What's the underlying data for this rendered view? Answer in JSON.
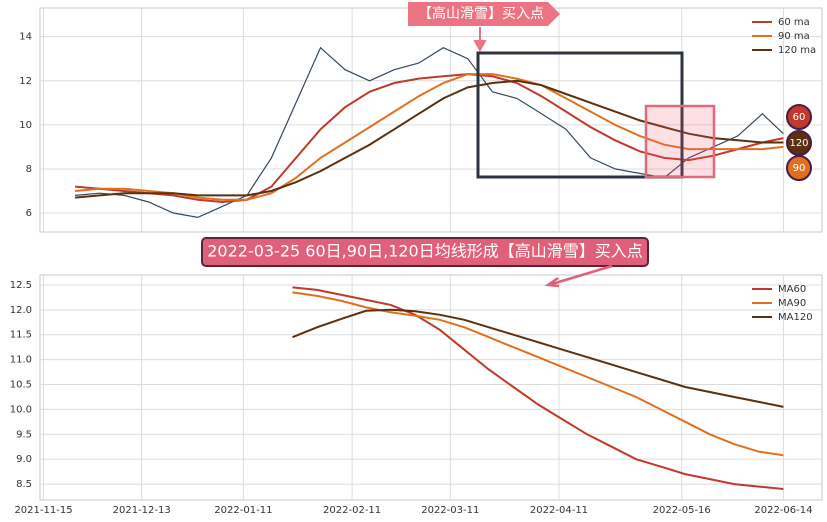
{
  "chart_data": [
    {
      "type": "line",
      "annotation": "【高山滑雪】买入点",
      "end_badges": [
        "60",
        "120",
        "90"
      ],
      "x": [
        "2021-11-24",
        "2021-12-01",
        "2021-12-08",
        "2021-12-15",
        "2021-12-22",
        "2021-12-29",
        "2022-01-05",
        "2022-01-12",
        "2022-01-19",
        "2022-01-26",
        "2022-02-02",
        "2022-02-09",
        "2022-02-16",
        "2022-02-23",
        "2022-03-02",
        "2022-03-09",
        "2022-03-16",
        "2022-03-23",
        "2022-03-30",
        "2022-04-06",
        "2022-04-13",
        "2022-04-20",
        "2022-04-27",
        "2022-05-04",
        "2022-05-11",
        "2022-05-18",
        "2022-05-25",
        "2022-06-01",
        "2022-06-08",
        "2022-06-14"
      ],
      "series": [
        {
          "color": "#34495e",
          "values": [
            6.8,
            6.9,
            6.8,
            6.5,
            6.0,
            5.8,
            6.3,
            6.8,
            8.5,
            11.0,
            13.5,
            12.5,
            12.0,
            12.5,
            12.8,
            13.5,
            13.0,
            11.5,
            11.2,
            10.5,
            9.8,
            8.5,
            8.0,
            7.8,
            7.6,
            8.5,
            9.0,
            9.5,
            10.5,
            9.6
          ]
        },
        {
          "name": "60 ma",
          "color": "#c0392b",
          "values": [
            7.2,
            7.1,
            7.0,
            6.9,
            6.8,
            6.6,
            6.5,
            6.6,
            7.2,
            8.5,
            9.8,
            10.8,
            11.5,
            11.9,
            12.1,
            12.2,
            12.3,
            12.2,
            11.9,
            11.3,
            10.6,
            9.9,
            9.3,
            8.8,
            8.5,
            8.4,
            8.6,
            8.9,
            9.2,
            9.4
          ]
        },
        {
          "name": "90 ma",
          "color": "#e07020",
          "values": [
            7.0,
            7.1,
            7.1,
            7.0,
            6.9,
            6.7,
            6.6,
            6.6,
            6.9,
            7.6,
            8.5,
            9.2,
            9.9,
            10.6,
            11.3,
            11.9,
            12.3,
            12.3,
            12.1,
            11.8,
            11.2,
            10.6,
            10.0,
            9.5,
            9.1,
            8.9,
            8.9,
            8.9,
            8.9,
            9.0
          ]
        },
        {
          "name": "120 ma",
          "color": "#5a3010",
          "values": [
            6.7,
            6.8,
            6.9,
            6.9,
            6.9,
            6.8,
            6.8,
            6.8,
            7.0,
            7.4,
            7.9,
            8.5,
            9.1,
            9.8,
            10.5,
            11.2,
            11.7,
            11.9,
            12.0,
            11.8,
            11.4,
            11.0,
            10.6,
            10.2,
            9.9,
            9.6,
            9.4,
            9.3,
            9.2,
            9.2
          ]
        }
      ],
      "xlim": [
        "2021-11-14",
        "2022-06-25"
      ],
      "xticks": [
        "2021-11-15",
        "2021-12-13",
        "2022-01-11",
        "2022-02-11",
        "2022-03-11",
        "2022-04-11",
        "2022-05-16",
        "2022-06-14"
      ],
      "ylim": [
        5.14,
        15.3
      ],
      "yticks": [
        6,
        8,
        10,
        12,
        14
      ],
      "grid": true,
      "legend": "upper right"
    },
    {
      "type": "line",
      "title": "2022-03-25 60日,90日,120日均线形成【高山滑雪】买入点",
      "x": [
        "2022-01-25",
        "2022-02-01",
        "2022-02-08",
        "2022-02-15",
        "2022-02-22",
        "2022-03-01",
        "2022-03-08",
        "2022-03-15",
        "2022-03-22",
        "2022-03-29",
        "2022-04-05",
        "2022-04-12",
        "2022-04-19",
        "2022-04-26",
        "2022-05-03",
        "2022-05-10",
        "2022-05-17",
        "2022-05-24",
        "2022-05-31",
        "2022-06-07",
        "2022-06-14"
      ],
      "series": [
        {
          "name": "MA60",
          "color": "#c0392b",
          "values": [
            12.45,
            12.4,
            12.3,
            12.2,
            12.1,
            11.9,
            11.6,
            11.2,
            10.8,
            10.45,
            10.1,
            9.8,
            9.5,
            9.25,
            9.0,
            8.85,
            8.7,
            8.6,
            8.5,
            8.45,
            8.4
          ]
        },
        {
          "name": "MA90",
          "color": "#e07020",
          "values": [
            12.35,
            12.28,
            12.18,
            12.05,
            11.95,
            11.88,
            11.8,
            11.65,
            11.45,
            11.25,
            11.05,
            10.85,
            10.65,
            10.45,
            10.25,
            10.0,
            9.75,
            9.5,
            9.3,
            9.15,
            9.08
          ]
        },
        {
          "name": "MA120",
          "color": "#5a3010",
          "values": [
            11.45,
            11.65,
            11.82,
            11.98,
            12.0,
            11.97,
            11.9,
            11.8,
            11.65,
            11.5,
            11.35,
            11.2,
            11.05,
            10.9,
            10.75,
            10.6,
            10.45,
            10.35,
            10.25,
            10.15,
            10.05
          ]
        }
      ],
      "xlim": [
        "2021-11-14",
        "2022-06-25"
      ],
      "xticks": [
        "2021-11-15",
        "2021-12-13",
        "2022-01-11",
        "2022-02-11",
        "2022-03-11",
        "2022-04-11",
        "2022-05-16",
        "2022-06-14"
      ],
      "ylim": [
        8.18,
        12.7
      ],
      "yticks": [
        8.5,
        {
          "value": 9,
          "label": "9.0"
        },
        9.5,
        {
          "value": 10,
          "label": "10.0"
        },
        10.5,
        {
          "value": 11,
          "label": "11.0"
        },
        11.5,
        {
          "value": 12,
          "label": "12.0"
        },
        12.5
      ],
      "grid": true,
      "legend": "upper right"
    }
  ]
}
